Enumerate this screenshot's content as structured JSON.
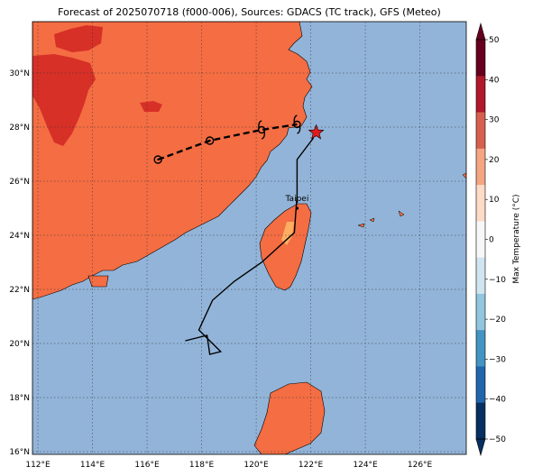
{
  "title": "Forecast of 2025070718 (f000-006), Sources: GDACS (TC track), GFS (Meteo)",
  "lon_ticks": [
    "112°E",
    "114°E",
    "116°E",
    "118°E",
    "120°E",
    "122°E",
    "124°E",
    "126°E"
  ],
  "lat_ticks": [
    "30°N",
    "28°N",
    "26°N",
    "24°N",
    "22°N",
    "20°N",
    "18°N",
    "16°N"
  ],
  "colorbar": {
    "label": "Max Temperature (°C)",
    "ticks": [
      "50",
      "40",
      "30",
      "20",
      "10",
      "0",
      "−10",
      "−20",
      "−30",
      "−40",
      "−50"
    ],
    "colors": [
      "#67001f",
      "#b2182b",
      "#d6604d",
      "#f4a582",
      "#fddbc7",
      "#f7f7f7",
      "#d1e5f0",
      "#92c5de",
      "#4393c3",
      "#2166ac",
      "#053061"
    ]
  },
  "colors": {
    "ocean": "#92b4d9",
    "land_warm": "#f46d43",
    "land_hot": "#d73027",
    "land_mild": "#fdae61",
    "track": "#000000",
    "current_position": "#e31a1c"
  },
  "city_label": "Taipei",
  "chart_data": {
    "type": "map",
    "lon_range": [
      111.8,
      127.7
    ],
    "lat_range": [
      15.9,
      31.9
    ],
    "history_track": [
      [
        117.4,
        20.1
      ],
      [
        118.2,
        20.3
      ],
      [
        118.3,
        19.6
      ],
      [
        118.7,
        19.7
      ],
      [
        117.9,
        20.5
      ],
      [
        118.4,
        21.6
      ],
      [
        119.2,
        22.3
      ],
      [
        120.2,
        23.0
      ],
      [
        121.4,
        24.1
      ],
      [
        121.5,
        25.5
      ],
      [
        121.5,
        26.8
      ],
      [
        122.1,
        27.6
      ]
    ],
    "forecast_track": [
      [
        116.4,
        26.8
      ],
      [
        118.3,
        27.5
      ],
      [
        120.2,
        27.9
      ],
      [
        121.5,
        28.1
      ]
    ],
    "forecast_markers": [
      [
        116.4,
        26.8
      ],
      [
        118.3,
        27.5
      ],
      [
        120.2,
        27.9
      ],
      [
        121.5,
        28.1
      ]
    ],
    "current_position": [
      122.2,
      27.8
    ],
    "city": {
      "name": "Taipei",
      "lon": 121.5,
      "lat": 25.0
    }
  }
}
